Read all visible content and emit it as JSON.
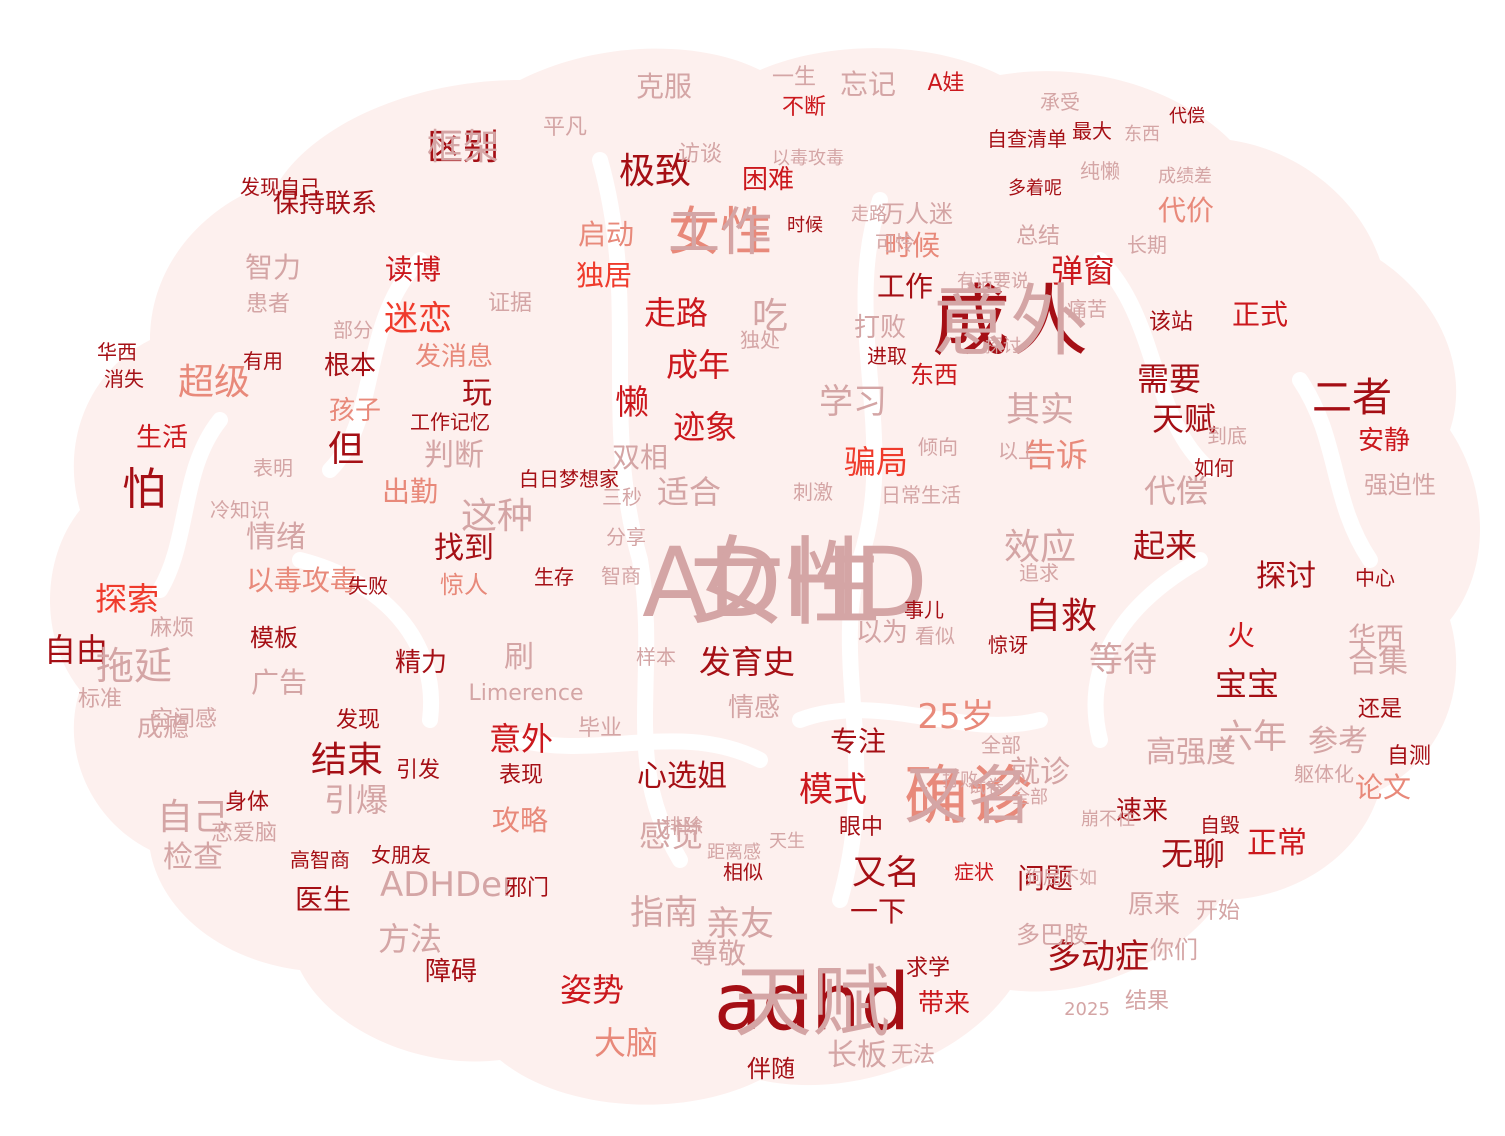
{
  "words": [
    {
      "text": "ADHD",
      "color": "#d4a5a5"
    },
    {
      "text": "adhd",
      "color": "#a50f15"
    },
    {
      "text": "成人",
      "color": "#a50f15"
    },
    {
      "text": "确诊",
      "color": "#e8897a"
    },
    {
      "text": "女性",
      "color": "#e8897a"
    },
    {
      "text": "区别",
      "color": "#a50f15"
    },
    {
      "text": "极致",
      "color": "#a50f15"
    },
    {
      "text": "困难",
      "color": "#cb181d"
    },
    {
      "text": "忘记",
      "color": "#d4a5a5"
    },
    {
      "text": "克服",
      "color": "#d4a5a5"
    },
    {
      "text": "A娃",
      "color": "#cb181d"
    },
    {
      "text": "一生",
      "color": "#d4a5a5"
    },
    {
      "text": "不断",
      "color": "#cb181d"
    },
    {
      "text": "保持联系",
      "color": "#a50f15"
    },
    {
      "text": "智力",
      "color": "#d4a5a5"
    },
    {
      "text": "患者",
      "color": "#d4a5a5"
    },
    {
      "text": "读博",
      "color": "#cb181d"
    },
    {
      "text": "迷恋",
      "color": "#ef3b2c"
    },
    {
      "text": "证据",
      "color": "#d4a5a5"
    },
    {
      "text": "启动",
      "color": "#e8897a"
    },
    {
      "text": "独居",
      "color": "#ef3b2c"
    },
    {
      "text": "走路",
      "color": "#cb181d"
    },
    {
      "text": "吃",
      "color": "#d4a5a5"
    },
    {
      "text": "成年",
      "color": "#cb181d"
    },
    {
      "text": "懒",
      "color": "#cb181d"
    },
    {
      "text": "迹象",
      "color": "#cb181d"
    },
    {
      "text": "时候",
      "color": "#e8897a"
    },
    {
      "text": "万人迷",
      "color": "#d4a5a5"
    },
    {
      "text": "工作",
      "color": "#a50f15"
    },
    {
      "text": "打败",
      "color": "#d4a5a5"
    },
    {
      "text": "弹窗",
      "color": "#cb181d"
    },
    {
      "text": "代价",
      "color": "#e8897a"
    },
    {
      "text": "正式",
      "color": "#cb181d"
    },
    {
      "text": "该站",
      "color": "#a50f15"
    },
    {
      "text": "超级",
      "color": "#e8897a"
    },
    {
      "text": "生活",
      "color": "#cb181d"
    },
    {
      "text": "怕",
      "color": "#a50f15"
    },
    {
      "text": "根本",
      "color": "#a50f15"
    },
    {
      "text": "孩子",
      "color": "#e8897a"
    },
    {
      "text": "发消息",
      "color": "#e8897a"
    },
    {
      "text": "玩",
      "color": "#a50f15"
    },
    {
      "text": "但",
      "color": "#a50f15"
    },
    {
      "text": "学习",
      "color": "#d4a5a5"
    },
    {
      "text": "东西",
      "color": "#cb181d"
    },
    {
      "text": "其实",
      "color": "#d4a5a5"
    },
    {
      "text": "需要",
      "color": "#a50f15"
    },
    {
      "text": "天赋",
      "color": "#a50f15"
    },
    {
      "text": "二者",
      "color": "#a50f15"
    },
    {
      "text": "安静",
      "color": "#cb181d"
    },
    {
      "text": "骗局",
      "color": "#ef3b2c"
    },
    {
      "text": "告诉",
      "color": "#e8897a"
    },
    {
      "text": "代偿",
      "color": "#d4a5a5"
    },
    {
      "text": "强迫性",
      "color": "#d4a5a5"
    },
    {
      "text": "双相",
      "color": "#d4a5a5"
    },
    {
      "text": "适合",
      "color": "#d4a5a5"
    },
    {
      "text": "判断",
      "color": "#d4a5a5"
    },
    {
      "text": "这种",
      "color": "#d4a5a5"
    },
    {
      "text": "情绪",
      "color": "#d4a5a5"
    },
    {
      "text": "探索",
      "color": "#ef3b2c"
    },
    {
      "text": "自由",
      "color": "#a50f15"
    },
    {
      "text": "拖延",
      "color": "#d4a5a5"
    },
    {
      "text": "以毒攻毒",
      "color": "#e8897a"
    },
    {
      "text": "出勤",
      "color": "#e8897a"
    },
    {
      "text": "找到",
      "color": "#a50f15"
    },
    {
      "text": "惊人",
      "color": "#e8897a"
    },
    {
      "text": "精力",
      "color": "#a50f15"
    },
    {
      "text": "刷",
      "color": "#d4a5a5"
    },
    {
      "text": "起来",
      "color": "#a50f15"
    },
    {
      "text": "效应",
      "color": "#d4a5a5"
    },
    {
      "text": "自救",
      "color": "#a50f15"
    },
    {
      "text": "探讨",
      "color": "#a50f15"
    },
    {
      "text": "等待",
      "color": "#d4a5a5"
    },
    {
      "text": "火",
      "color": "#cb181d"
    },
    {
      "text": "华西",
      "color": "#d4a5a5"
    },
    {
      "text": "宝宝",
      "color": "#a50f15"
    },
    {
      "text": "合集",
      "color": "#d4a5a5"
    },
    {
      "text": "发育史",
      "color": "#a50f15"
    },
    {
      "text": "以为",
      "color": "#d4a5a5"
    },
    {
      "text": "意外",
      "color": "#cb181d"
    },
    {
      "text": "情感",
      "color": "#d4a5a5"
    },
    {
      "text": "25岁",
      "color": "#e8897a"
    },
    {
      "text": "专注",
      "color": "#a50f15"
    },
    {
      "text": "六年",
      "color": "#d4a5a5"
    },
    {
      "text": "参考",
      "color": "#d4a5a5"
    },
    {
      "text": "高强度",
      "color": "#d4a5a5"
    },
    {
      "text": "结束",
      "color": "#a50f15"
    },
    {
      "text": "引爆",
      "color": "#d4a5a5"
    },
    {
      "text": "自己",
      "color": "#d4a5a5"
    },
    {
      "text": "检查",
      "color": "#d4a5a5"
    },
    {
      "text": "攻略",
      "color": "#e8897a"
    },
    {
      "text": "心选姐",
      "color": "#a50f15"
    },
    {
      "text": "感觉",
      "color": "#d4a5a5"
    },
    {
      "text": "模式",
      "color": "#cb181d"
    },
    {
      "text": "就诊",
      "color": "#d4a5a5"
    },
    {
      "text": "又名",
      "color": "#a50f15"
    },
    {
      "text": "速来",
      "color": "#a50f15"
    },
    {
      "text": "无聊",
      "color": "#a50f15"
    },
    {
      "text": "正常",
      "color": "#cb181d"
    },
    {
      "text": "论文",
      "color": "#e8897a"
    },
    {
      "text": "ADHDer",
      "color": "#d4a5a5"
    },
    {
      "text": "指南",
      "color": "#d4a5a5"
    },
    {
      "text": "亲友",
      "color": "#d4a5a5"
    },
    {
      "text": "方法",
      "color": "#d4a5a5"
    },
    {
      "text": "姿势",
      "color": "#cb181d"
    },
    {
      "text": "尊敬",
      "color": "#d4a5a5"
    },
    {
      "text": "大脑",
      "color": "#e8897a"
    },
    {
      "text": "长板",
      "color": "#d4a5a5"
    },
    {
      "text": "一下",
      "color": "#a50f15"
    },
    {
      "text": "多动症",
      "color": "#a50f15"
    },
    {
      "text": "医生",
      "color": "#a50f15"
    },
    {
      "text": "障碍",
      "color": "#a50f15"
    },
    {
      "text": "邪门",
      "color": "#a50f15"
    },
    {
      "text": "求学",
      "color": "#a50f15"
    },
    {
      "text": "带来",
      "color": "#cb181d"
    },
    {
      "text": "问题",
      "color": "#a50f15"
    },
    {
      "text": "多巴胺",
      "color": "#d4a5a5"
    },
    {
      "text": "原来",
      "color": "#d4a5a5"
    },
    {
      "text": "你们",
      "color": "#d4a5a5"
    },
    {
      "text": "结果",
      "color": "#d4a5a5"
    },
    {
      "text": "2025",
      "color": "#d4a5a5"
    },
    {
      "text": "伴随",
      "color": "#a50f15"
    },
    {
      "text": "无法",
      "color": "#d4a5a5"
    },
    {
      "text": "成瘾",
      "color": "#d4a5a5"
    },
    {
      "text": "空间感",
      "color": "#d4a5a5"
    },
    {
      "text": "Limerence",
      "color": "#d4a5a5"
    },
    {
      "text": "表现",
      "color": "#a50f15"
    },
    {
      "text": "毕业",
      "color": "#d4a5a5"
    },
    {
      "text": "模板",
      "color": "#a50f15"
    },
    {
      "text": "广告",
      "color": "#d4a5a5"
    },
    {
      "text": "标准",
      "color": "#d4a5a5"
    },
    {
      "text": "麻烦",
      "color": "#d4a5a5"
    },
    {
      "text": "身体",
      "color": "#a50f15"
    },
    {
      "text": "恋爱脑",
      "color": "#d4a5a5"
    },
    {
      "text": "自测",
      "color": "#a50f15"
    },
    {
      "text": "躯体化",
      "color": "#d4a5a5"
    },
    {
      "text": "还是",
      "color": "#a50f15"
    },
    {
      "text": "开始",
      "color": "#d4a5a5"
    },
    {
      "text": "症状",
      "color": "#cb181d"
    },
    {
      "text": "自毁",
      "color": "#a50f15"
    },
    {
      "text": "相似",
      "color": "#a50f15"
    },
    {
      "text": "距离感",
      "color": "#d4a5a5"
    },
    {
      "text": "排除",
      "color": "#d4a5a5"
    },
    {
      "text": "眼中",
      "color": "#a50f15"
    },
    {
      "text": "高智商",
      "color": "#a50f15"
    },
    {
      "text": "女朋友",
      "color": "#a50f15"
    },
    {
      "text": "发现",
      "color": "#a50f15"
    },
    {
      "text": "引发",
      "color": "#a50f15"
    },
    {
      "text": "平凡",
      "color": "#d4a5a5"
    },
    {
      "text": "访谈",
      "color": "#d4a5a5"
    },
    {
      "text": "承受",
      "color": "#d4a5a5"
    },
    {
      "text": "自查清单",
      "color": "#a50f15"
    },
    {
      "text": "最大",
      "color": "#a50f15"
    },
    {
      "text": "纯懒",
      "color": "#d4a5a5"
    },
    {
      "text": "可怜",
      "color": "#d4a5a5"
    },
    {
      "text": "总结",
      "color": "#d4a5a5"
    },
    {
      "text": "长期",
      "color": "#d4a5a5"
    },
    {
      "text": "痛苦",
      "color": "#d4a5a5"
    },
    {
      "text": "独处",
      "color": "#d4a5a5"
    },
    {
      "text": "进取",
      "color": "#a50f15"
    },
    {
      "text": "刺激",
      "color": "#d4a5a5"
    },
    {
      "text": "日常生活",
      "color": "#d4a5a5"
    },
    {
      "text": "白日梦想家",
      "color": "#a50f15"
    },
    {
      "text": "工作记忆",
      "color": "#a50f15"
    },
    {
      "text": "三秒",
      "color": "#d4a5a5"
    },
    {
      "text": "分享",
      "color": "#d4a5a5"
    },
    {
      "text": "智商",
      "color": "#d4a5a5"
    },
    {
      "text": "样本",
      "color": "#d4a5a5"
    },
    {
      "text": "失败",
      "color": "#a50f15"
    },
    {
      "text": "生存",
      "color": "#a50f15"
    },
    {
      "text": "冷知识",
      "color": "#d4a5a5"
    },
    {
      "text": "表明",
      "color": "#d4a5a5"
    },
    {
      "text": "部分",
      "color": "#d4a5a5"
    },
    {
      "text": "发现自己",
      "color": "#a50f15"
    },
    {
      "text": "消失",
      "color": "#a50f15"
    },
    {
      "text": "有用",
      "color": "#a50f15"
    },
    {
      "text": "华西",
      "color": "#a50f15"
    },
    {
      "text": "中心",
      "color": "#a50f15"
    },
    {
      "text": "追求",
      "color": "#d4a5a5"
    },
    {
      "text": "惊讶",
      "color": "#a50f15"
    },
    {
      "text": "如何",
      "color": "#a50f15"
    },
    {
      "text": "到底",
      "color": "#d4a5a5"
    },
    {
      "text": "以上",
      "color": "#d4a5a5"
    },
    {
      "text": "倾向",
      "color": "#d4a5a5"
    },
    {
      "text": "事儿",
      "color": "#a50f15"
    },
    {
      "text": "看似",
      "color": "#d4a5a5"
    },
    {
      "text": "全部",
      "color": "#d4a5a5"
    },
    {
      "text": "试卷",
      "color": "#d4a5a5"
    },
    {
      "text": "打败",
      "color": "#d4a5a5"
    },
    {
      "text": "狗屁不如",
      "color": "#d4a5a5"
    },
    {
      "text": "全部",
      "color": "#d4a5a5"
    },
    {
      "text": "天生",
      "color": "#d4a5a5"
    },
    {
      "text": "崩不住",
      "color": "#d4a5a5"
    },
    {
      "text": "成绩差",
      "color": "#d4a5a5"
    },
    {
      "text": "有话要说",
      "color": "#d4a5a5"
    },
    {
      "text": "以毒攻毒",
      "color": "#d4a5a5"
    },
    {
      "text": "探讨",
      "color": "#d4a5a5"
    },
    {
      "text": "多着呢",
      "color": "#a50f15"
    },
    {
      "text": "时候",
      "color": "#a50f15"
    },
    {
      "text": "走路",
      "color": "#d4a5a5"
    },
    {
      "text": "东西",
      "color": "#d4a5a5"
    },
    {
      "text": "代偿",
      "color": "#a50f15"
    },
    {
      "text": "女性",
      "color": "#d4a5a5"
    },
    {
      "text": "天赋",
      "color": "#d4a5a5"
    },
    {
      "text": "意外",
      "color": "#d4a5a5"
    },
    {
      "text": "又名",
      "color": "#d4a5a5"
    },
    {
      "text": "工作",
      "color": "#d4a5a5"
    },
    {
      "text": "框架",
      "color": "#d4a5a5"
    }
  ]
}
